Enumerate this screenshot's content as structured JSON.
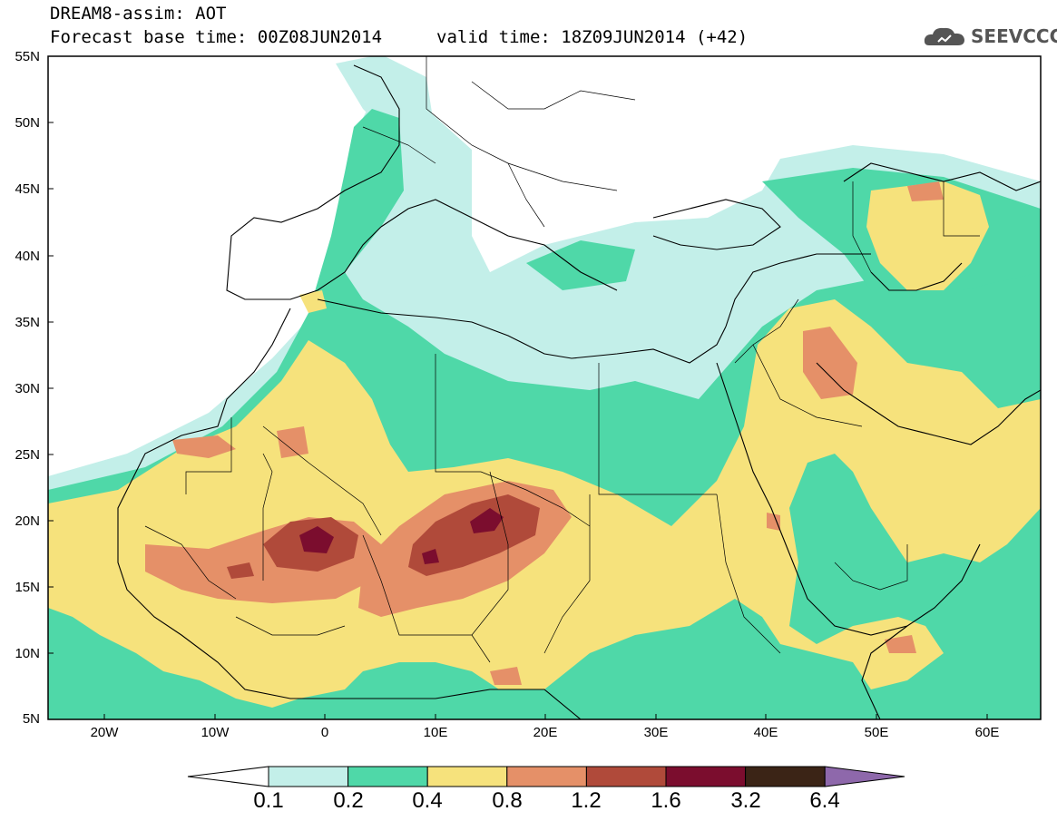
{
  "header": {
    "title": "DREAM8-assim: AOT",
    "base_time": "Forecast base time: 00Z08JUN2014",
    "valid_time": "valid time: 18Z09JUN2014 (+42)",
    "logo_text": "SEEVCCC"
  },
  "axes": {
    "lat_labels": [
      "55N",
      "50N",
      "45N",
      "40N",
      "35N",
      "30N",
      "25N",
      "20N",
      "15N",
      "10N",
      "5N"
    ],
    "lon_labels": [
      "20W",
      "10W",
      "0",
      "10E",
      "20E",
      "30E",
      "40E",
      "50E",
      "60E"
    ]
  },
  "colorbar": {
    "labels": [
      "0.1",
      "0.2",
      "0.4",
      "0.8",
      "1.2",
      "1.6",
      "3.2",
      "6.4"
    ],
    "colors": [
      "#ffffff",
      "#c3efe9",
      "#4fd8a8",
      "#f6e27c",
      "#e59068",
      "#b04a3a",
      "#7b0d2e",
      "#3b2416",
      "#8e68ab"
    ]
  },
  "map": {
    "colors": {
      "c01": "#c3efe9",
      "c02": "#4fd8a8",
      "c04": "#f6e27c",
      "c08": "#e59068",
      "c12": "#b04a3a",
      "c16": "#7b0d2e"
    }
  }
}
